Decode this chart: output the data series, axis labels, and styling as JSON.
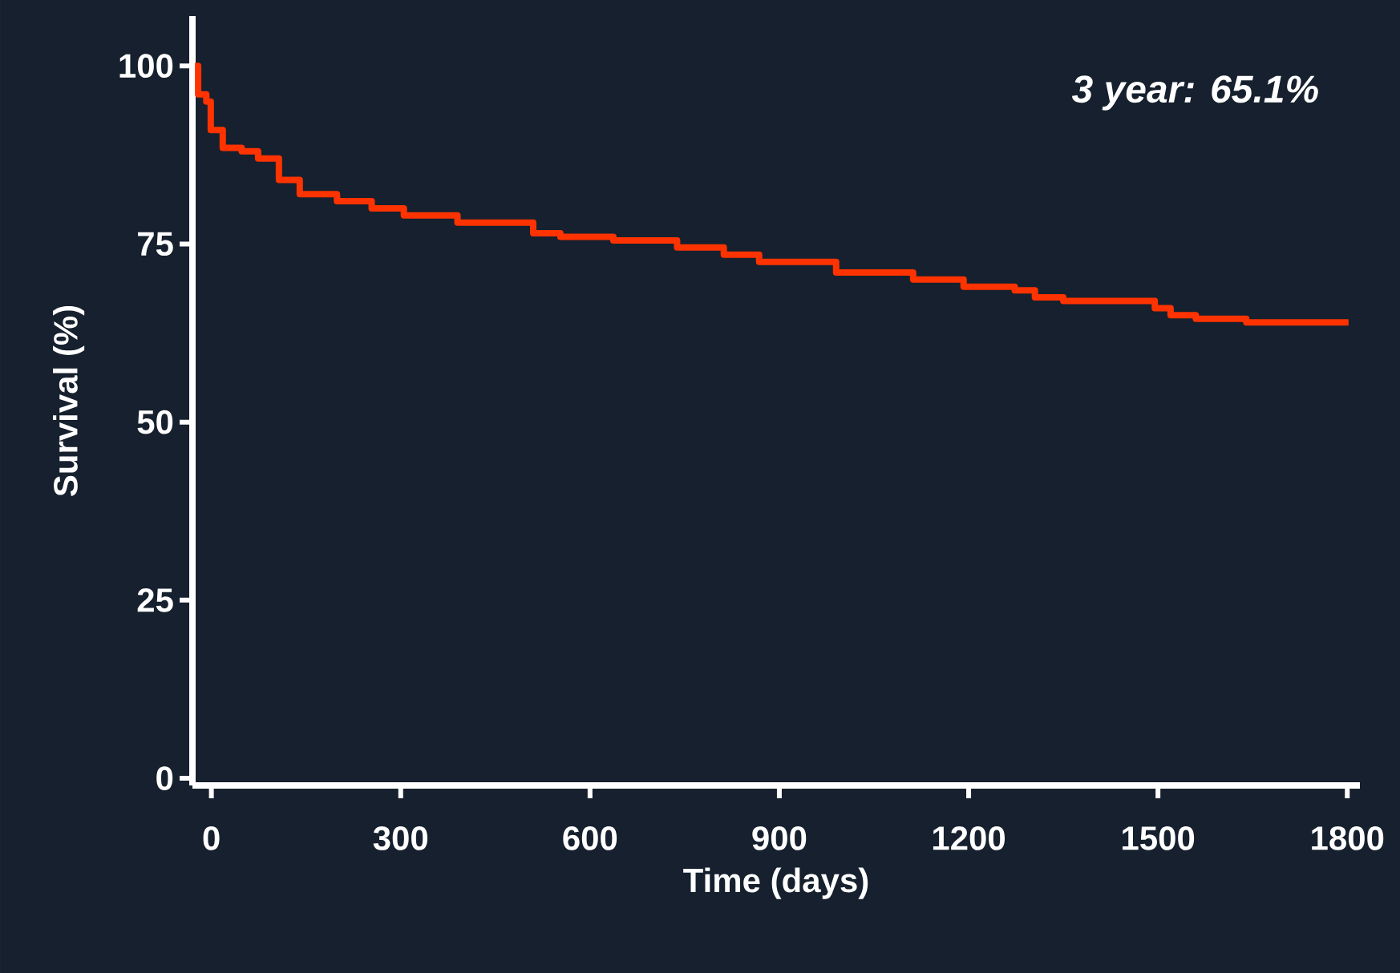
{
  "chart_data": {
    "type": "step",
    "xlabel": "Time (days)",
    "ylabel": "Survival  (%)",
    "annotations": [
      "3 year: 65.1%"
    ],
    "series": [
      {
        "color": "#ff3300",
        "x": [
          -26,
          -21,
          -8,
          -1,
          18,
          48,
          74,
          107,
          140,
          199,
          254,
          305,
          390,
          510,
          553,
          637,
          738,
          812,
          868,
          990,
          1112,
          1192,
          1273,
          1305,
          1350,
          1495,
          1520,
          1560,
          1640,
          1802
        ],
        "values": [
          100,
          96,
          95,
          91,
          88.5,
          88,
          87,
          84,
          82,
          81,
          80,
          79,
          78,
          76.5,
          76,
          75.5,
          74.5,
          73.5,
          72.5,
          71,
          70,
          69,
          68.5,
          67.5,
          67,
          66,
          65,
          64.5,
          64,
          64
        ]
      }
    ],
    "xlim": [
      -30,
      1820
    ],
    "ylim": [
      -1,
      107
    ],
    "xticks": [
      0,
      300,
      600,
      900,
      1200,
      1500,
      1800
    ],
    "yticks": [
      0,
      25,
      50,
      75,
      100
    ],
    "grid": false,
    "marker": "none",
    "line_style": "solid"
  }
}
